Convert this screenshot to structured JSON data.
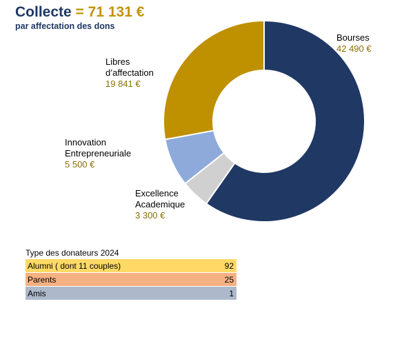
{
  "title": {
    "word": "Collecte",
    "amount": "= 71 131 €",
    "subtitle": "par affectation des dons"
  },
  "chart_data": {
    "type": "pie",
    "donut": true,
    "categories": [
      "Bourses",
      "Excellence Academique",
      "Innovation Entrepreneuriale",
      "Libres d'affectation"
    ],
    "values": [
      42490,
      3300,
      5500,
      19841
    ],
    "value_labels": [
      "42 490 €",
      "3 300 €",
      "5 500 €",
      "19 841 €"
    ],
    "label_lines": [
      [
        "Bourses"
      ],
      [
        "Excellence",
        "Academique"
      ],
      [
        "Innovation",
        "Entrepreneuriale"
      ],
      [
        "Libres",
        "d’affectation"
      ]
    ],
    "colors": [
      "#203864",
      "#d0d0d0",
      "#8eaadb",
      "#bf9000"
    ],
    "start_angle_deg": 0,
    "direction": "clockwise"
  },
  "donors": {
    "title": "Type des donateurs 2024",
    "rows": [
      {
        "label": "Alumni ( dont 11 couples)",
        "count": "92",
        "color": "#ffd966"
      },
      {
        "label": "Parents",
        "count": "25",
        "color": "#f4b183"
      },
      {
        "label": "Amis",
        "count": "1",
        "color": "#adb9ca"
      }
    ]
  }
}
